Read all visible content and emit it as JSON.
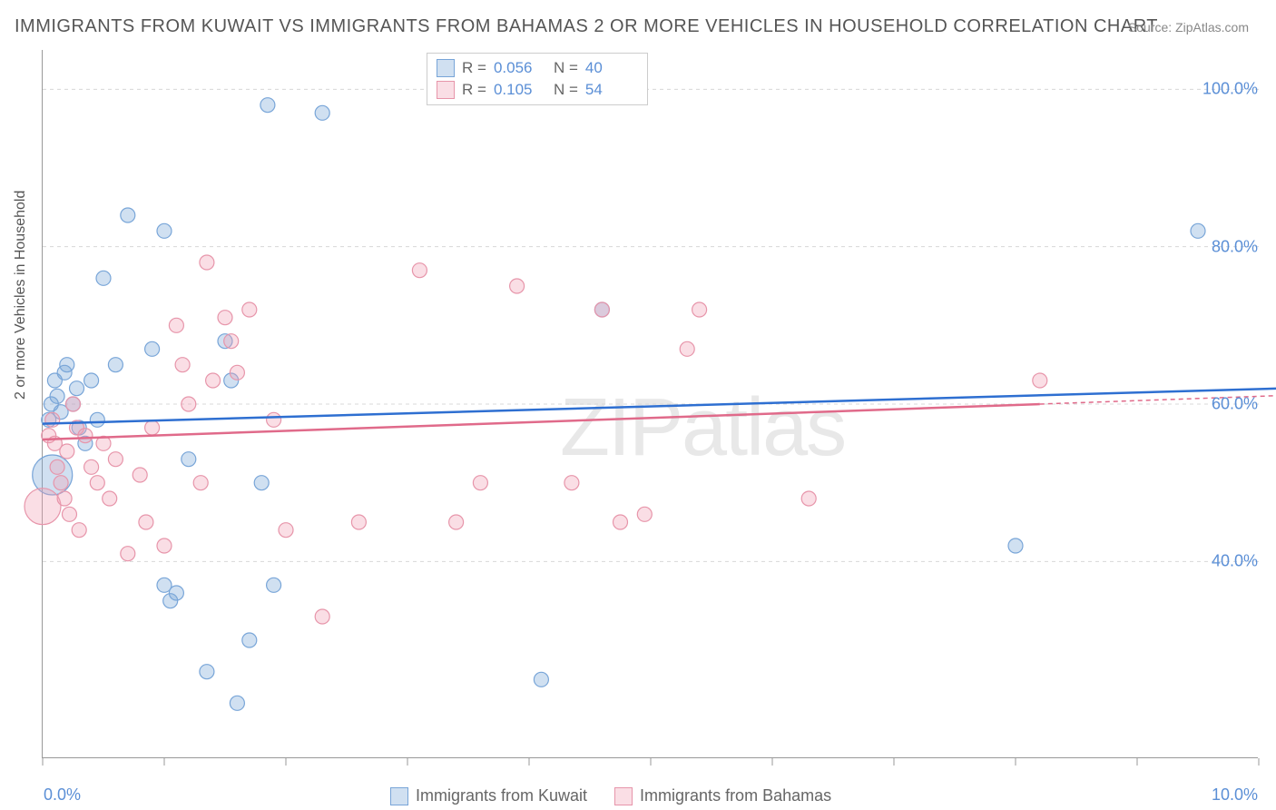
{
  "title": "IMMIGRANTS FROM KUWAIT VS IMMIGRANTS FROM BAHAMAS 2 OR MORE VEHICLES IN HOUSEHOLD CORRELATION CHART",
  "source": "Source: ZipAtlas.com",
  "watermark": "ZIPatlas",
  "chart": {
    "type": "scatter-with-trend",
    "background_color": "#ffffff",
    "grid_color": "#d8d8d8",
    "axis_color": "#999999",
    "xlim": [
      0,
      10
    ],
    "ylim": [
      15,
      105
    ],
    "xtick_labels": [
      {
        "val": 0,
        "text": "0.0%"
      },
      {
        "val": 10,
        "text": "10.0%"
      }
    ],
    "xtick_positions": [
      0,
      1,
      2,
      3,
      4,
      5,
      6,
      7,
      8,
      9,
      10
    ],
    "ytick_labels": [
      {
        "val": 40,
        "text": "40.0%"
      },
      {
        "val": 60,
        "text": "60.0%"
      },
      {
        "val": 80,
        "text": "80.0%"
      },
      {
        "val": 100,
        "text": "100.0%"
      }
    ],
    "ylabel": "2 or more Vehicles in Household",
    "ylabel_fontsize": 16,
    "tick_label_color": "#5b8fd6",
    "tick_fontsize": 18,
    "marker_default_r": 8,
    "series": [
      {
        "name": "Immigrants from Kuwait",
        "fill_color": "rgba(120,165,216,0.35)",
        "stroke_color": "#78a5d8",
        "trend_color": "#2e6fd1",
        "trend_y1": 57.5,
        "trend_y2": 62,
        "trend_x1": 0,
        "trend_x2": 10.2,
        "R": "0.056",
        "N": "40",
        "points": [
          {
            "x": 0.08,
            "y": 51,
            "r": 22
          },
          {
            "x": 0.05,
            "y": 58
          },
          {
            "x": 0.07,
            "y": 60
          },
          {
            "x": 0.1,
            "y": 63
          },
          {
            "x": 0.12,
            "y": 61
          },
          {
            "x": 0.15,
            "y": 59
          },
          {
            "x": 0.18,
            "y": 64
          },
          {
            "x": 0.2,
            "y": 65
          },
          {
            "x": 0.25,
            "y": 60
          },
          {
            "x": 0.28,
            "y": 62
          },
          {
            "x": 0.3,
            "y": 57
          },
          {
            "x": 0.35,
            "y": 55
          },
          {
            "x": 0.4,
            "y": 63
          },
          {
            "x": 0.45,
            "y": 58
          },
          {
            "x": 0.5,
            "y": 76
          },
          {
            "x": 0.6,
            "y": 65
          },
          {
            "x": 0.7,
            "y": 84
          },
          {
            "x": 0.9,
            "y": 67
          },
          {
            "x": 1.0,
            "y": 82
          },
          {
            "x": 1.0,
            "y": 37
          },
          {
            "x": 1.05,
            "y": 35
          },
          {
            "x": 1.1,
            "y": 36
          },
          {
            "x": 1.2,
            "y": 53
          },
          {
            "x": 1.35,
            "y": 26
          },
          {
            "x": 1.5,
            "y": 68
          },
          {
            "x": 1.55,
            "y": 63
          },
          {
            "x": 1.6,
            "y": 22
          },
          {
            "x": 1.7,
            "y": 30
          },
          {
            "x": 1.8,
            "y": 50
          },
          {
            "x": 1.85,
            "y": 98
          },
          {
            "x": 1.9,
            "y": 37
          },
          {
            "x": 2.3,
            "y": 97
          },
          {
            "x": 4.1,
            "y": 25
          },
          {
            "x": 4.6,
            "y": 72
          },
          {
            "x": 8.0,
            "y": 42
          },
          {
            "x": 9.5,
            "y": 82
          }
        ]
      },
      {
        "name": "Immigrants from Bahamas",
        "fill_color": "rgba(240,160,180,0.35)",
        "stroke_color": "#e795aa",
        "trend_color": "#e06a8a",
        "trend_y1": 55.5,
        "trend_y2": 60,
        "trend_x1": 0,
        "trend_x2": 8.2,
        "trend_dash_x2": 10.2,
        "R": "0.105",
        "N": "54",
        "points": [
          {
            "x": 0.0,
            "y": 47,
            "r": 20
          },
          {
            "x": 0.05,
            "y": 56
          },
          {
            "x": 0.08,
            "y": 58
          },
          {
            "x": 0.1,
            "y": 55
          },
          {
            "x": 0.12,
            "y": 52
          },
          {
            "x": 0.15,
            "y": 50
          },
          {
            "x": 0.18,
            "y": 48
          },
          {
            "x": 0.2,
            "y": 54
          },
          {
            "x": 0.22,
            "y": 46
          },
          {
            "x": 0.25,
            "y": 60
          },
          {
            "x": 0.28,
            "y": 57
          },
          {
            "x": 0.3,
            "y": 44
          },
          {
            "x": 0.35,
            "y": 56
          },
          {
            "x": 0.4,
            "y": 52
          },
          {
            "x": 0.45,
            "y": 50
          },
          {
            "x": 0.5,
            "y": 55
          },
          {
            "x": 0.55,
            "y": 48
          },
          {
            "x": 0.6,
            "y": 53
          },
          {
            "x": 0.7,
            "y": 41
          },
          {
            "x": 0.8,
            "y": 51
          },
          {
            "x": 0.85,
            "y": 45
          },
          {
            "x": 0.9,
            "y": 57
          },
          {
            "x": 1.0,
            "y": 42
          },
          {
            "x": 1.1,
            "y": 70
          },
          {
            "x": 1.15,
            "y": 65
          },
          {
            "x": 1.2,
            "y": 60
          },
          {
            "x": 1.3,
            "y": 50
          },
          {
            "x": 1.35,
            "y": 78
          },
          {
            "x": 1.4,
            "y": 63
          },
          {
            "x": 1.5,
            "y": 71
          },
          {
            "x": 1.55,
            "y": 68
          },
          {
            "x": 1.6,
            "y": 64
          },
          {
            "x": 1.7,
            "y": 72
          },
          {
            "x": 1.9,
            "y": 58
          },
          {
            "x": 2.0,
            "y": 44
          },
          {
            "x": 2.3,
            "y": 33
          },
          {
            "x": 2.6,
            "y": 45
          },
          {
            "x": 3.1,
            "y": 77
          },
          {
            "x": 3.4,
            "y": 45
          },
          {
            "x": 3.6,
            "y": 50
          },
          {
            "x": 3.9,
            "y": 75
          },
          {
            "x": 4.35,
            "y": 50
          },
          {
            "x": 4.6,
            "y": 72
          },
          {
            "x": 4.75,
            "y": 45
          },
          {
            "x": 4.95,
            "y": 46
          },
          {
            "x": 5.3,
            "y": 67
          },
          {
            "x": 5.4,
            "y": 72
          },
          {
            "x": 6.3,
            "y": 48
          },
          {
            "x": 8.2,
            "y": 63
          }
        ]
      }
    ]
  },
  "legend_top": {
    "rows": [
      {
        "swatch_fill": "rgba(120,165,216,0.35)",
        "swatch_border": "#78a5d8",
        "R_label": "R =",
        "R": "0.056",
        "N_label": "N =",
        "N": "40"
      },
      {
        "swatch_fill": "rgba(240,160,180,0.35)",
        "swatch_border": "#e795aa",
        "R_label": "R =",
        "R": "0.105",
        "N_label": "N =",
        "N": "54"
      }
    ]
  },
  "legend_bottom": {
    "items": [
      {
        "swatch_fill": "rgba(120,165,216,0.35)",
        "swatch_border": "#78a5d8",
        "label": "Immigrants from Kuwait"
      },
      {
        "swatch_fill": "rgba(240,160,180,0.35)",
        "swatch_border": "#e795aa",
        "label": "Immigrants from Bahamas"
      }
    ]
  }
}
